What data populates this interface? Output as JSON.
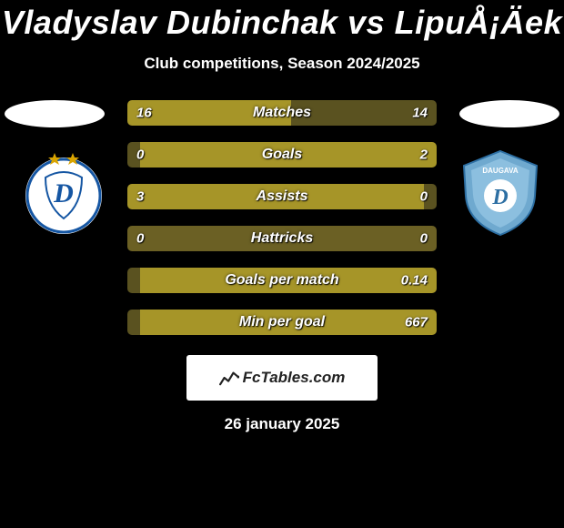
{
  "title": "Vladyslav Dubinchak vs LipuÅ¡Äek",
  "subtitle": "Club competitions, Season 2024/2025",
  "date": "26 january 2025",
  "site_logo_text": "FcTables.com",
  "colors": {
    "bar_highlight": "#a69528",
    "bar_dim": "#5a5220",
    "bar_neutral": "#6b6024",
    "background": "#000000",
    "text": "#ffffff"
  },
  "left_club": {
    "name": "Dynamo Kyiv",
    "badge_bg": "#ffffff",
    "badge_accent": "#1556a3",
    "star_color": "#d9a400"
  },
  "right_club": {
    "name": "Daugava",
    "badge_bg": "#6fa9cf",
    "badge_accent": "#2d6fa3",
    "label": "DAUGAVA"
  },
  "rows": [
    {
      "label": "Matches",
      "left": "16",
      "right": "14",
      "left_pct": 53,
      "left_wins": true
    },
    {
      "label": "Goals",
      "left": "0",
      "right": "2",
      "left_pct": 4,
      "left_wins": false
    },
    {
      "label": "Assists",
      "left": "3",
      "right": "0",
      "left_pct": 96,
      "left_wins": true
    },
    {
      "label": "Hattricks",
      "left": "0",
      "right": "0",
      "left_pct": 50,
      "left_wins": null
    },
    {
      "label": "Goals per match",
      "left": "",
      "right": "0.14",
      "left_pct": 4,
      "left_wins": false
    },
    {
      "label": "Min per goal",
      "left": "",
      "right": "667",
      "left_pct": 4,
      "left_wins": false
    }
  ]
}
